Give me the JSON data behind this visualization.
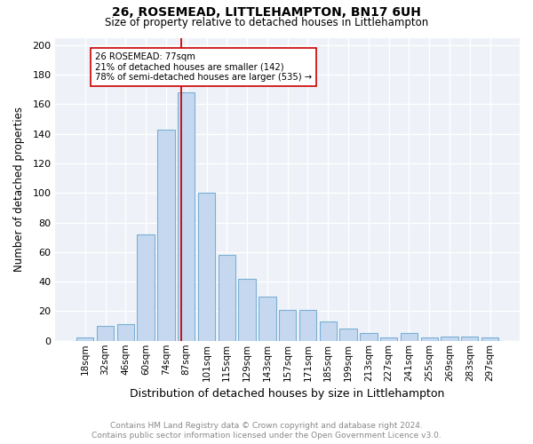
{
  "title1": "26, ROSEMEAD, LITTLEHAMPTON, BN17 6UH",
  "title2": "Size of property relative to detached houses in Littlehampton",
  "xlabel": "Distribution of detached houses by size in Littlehampton",
  "ylabel": "Number of detached properties",
  "categories": [
    "18sqm",
    "32sqm",
    "46sqm",
    "60sqm",
    "74sqm",
    "87sqm",
    "101sqm",
    "115sqm",
    "129sqm",
    "143sqm",
    "157sqm",
    "171sqm",
    "185sqm",
    "199sqm",
    "213sqm",
    "227sqm",
    "241sqm",
    "255sqm",
    "269sqm",
    "283sqm",
    "297sqm"
  ],
  "values": [
    2,
    10,
    11,
    72,
    143,
    168,
    100,
    58,
    42,
    30,
    21,
    21,
    13,
    8,
    5,
    2,
    5,
    2,
    3,
    3,
    2
  ],
  "bar_color": "#c5d8f0",
  "bar_edge_color": "#7bafd4",
  "vline_x": 4.77,
  "vline_color": "#cc0000",
  "annotation_lines": [
    "26 ROSEMEAD: 77sqm",
    "21% of detached houses are smaller (142)",
    "78% of semi-detached houses are larger (535) →"
  ],
  "annotation_box_color": "#ffffff",
  "annotation_box_edge": "#cc0000",
  "ylim": [
    0,
    205
  ],
  "yticks": [
    0,
    20,
    40,
    60,
    80,
    100,
    120,
    140,
    160,
    180,
    200
  ],
  "footnote1": "Contains HM Land Registry data © Crown copyright and database right 2024.",
  "footnote2": "Contains public sector information licensed under the Open Government Licence v3.0.",
  "bg_color": "#eef2f8"
}
